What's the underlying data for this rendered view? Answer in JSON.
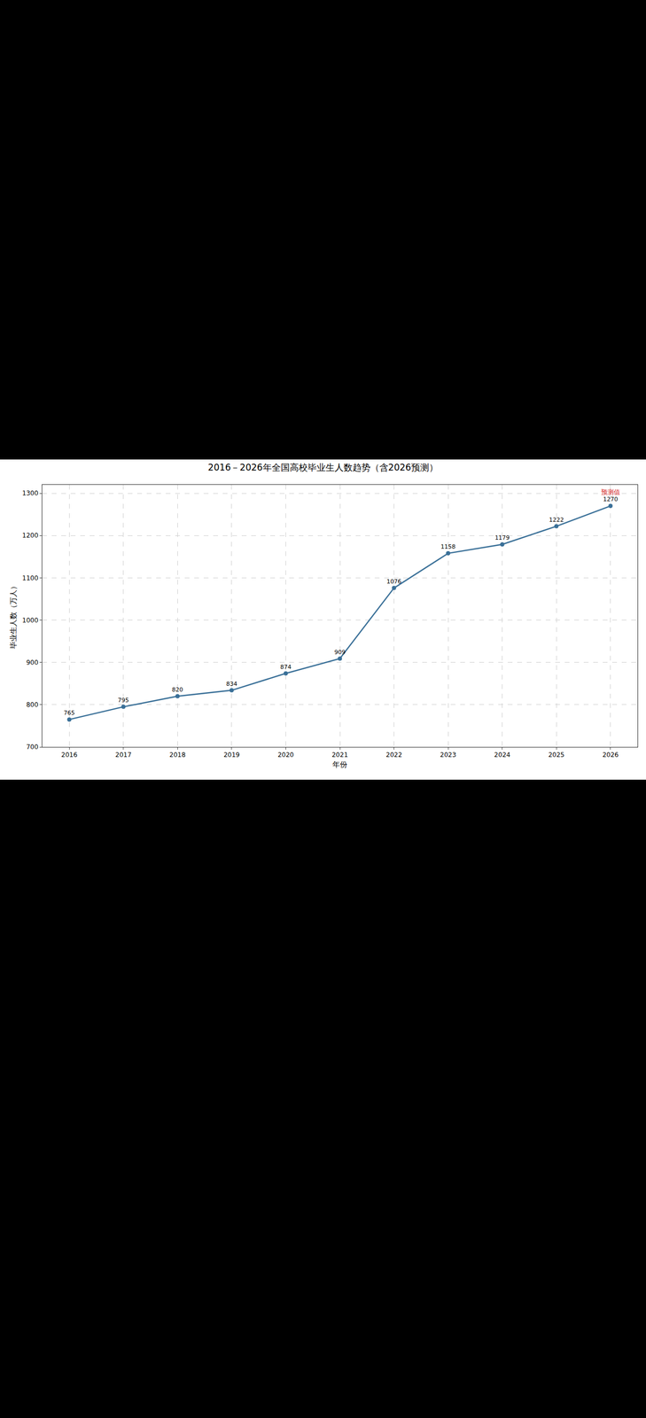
{
  "chart_data": {
    "type": "line",
    "title": "2016－2026年全国高校毕业生人数趋势（含2026预测）",
    "x_label": "年份",
    "y_label": "毕业生人数（万人）",
    "x": [
      2016,
      2017,
      2018,
      2019,
      2020,
      2021,
      2022,
      2023,
      2024,
      2025,
      2026
    ],
    "values": [
      765,
      795,
      820,
      834,
      874,
      909,
      1076,
      1158,
      1179,
      1222,
      1270
    ],
    "color": "#3a7098",
    "marker": "circle",
    "line_style": "solid",
    "xlim": [
      2015.5,
      2026.5
    ],
    "xticks": [
      2016,
      2017,
      2018,
      2019,
      2020,
      2021,
      2022,
      2023,
      2024,
      2025,
      2026
    ],
    "ylim": [
      700,
      1320
    ],
    "yticks": [
      700,
      800,
      900,
      1000,
      1100,
      1200,
      1300
    ],
    "grid": true,
    "data_labels": true,
    "annotations": [
      {
        "text": "预测值",
        "x": 2026,
        "y": 1270,
        "color": "#d62728"
      }
    ]
  }
}
